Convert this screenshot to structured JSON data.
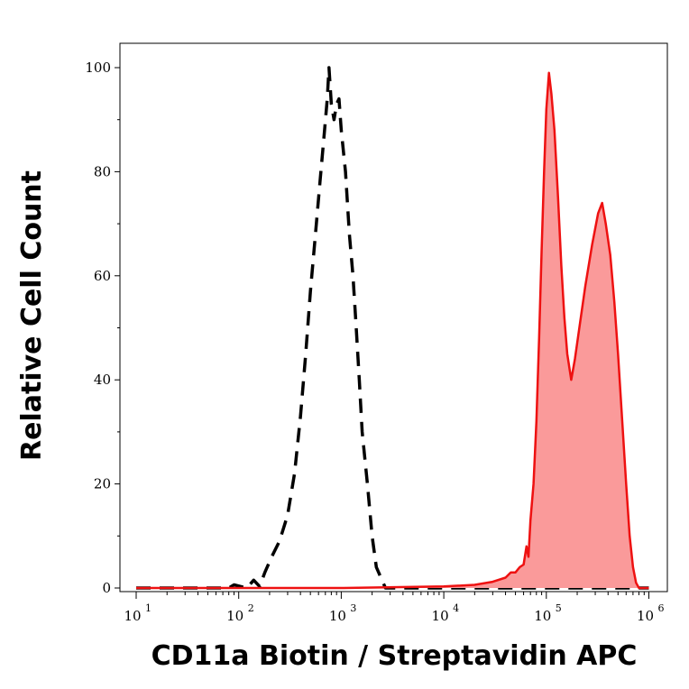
{
  "chart_data": {
    "type": "area",
    "title": "",
    "xlabel": "CD11a Biotin / Streptavidin APC",
    "ylabel": "Relative Cell Count",
    "x_scale": "log",
    "xlim": [
      10,
      1000000
    ],
    "ylim": [
      0,
      104
    ],
    "grid": false,
    "legend": "none",
    "x_ticks": [
      {
        "base": "10",
        "exp": "1",
        "value": 10
      },
      {
        "base": "10",
        "exp": "2",
        "value": 100
      },
      {
        "base": "10",
        "exp": "3",
        "value": 1000
      },
      {
        "base": "10",
        "exp": "4",
        "value": 10000
      },
      {
        "base": "10",
        "exp": "5",
        "value": 100000
      },
      {
        "base": "10",
        "exp": "6",
        "value": 1000000
      }
    ],
    "y_ticks": [
      {
        "label": "0",
        "value": 0
      },
      {
        "label": "20",
        "value": 20
      },
      {
        "label": "40",
        "value": 40
      },
      {
        "label": "60",
        "value": 60
      },
      {
        "label": "80",
        "value": 80
      },
      {
        "label": "100",
        "value": 100
      }
    ],
    "series": [
      {
        "style": "dashed",
        "color": "#000000",
        "fill": "none",
        "points": [
          [
            10,
            0
          ],
          [
            80,
            0
          ],
          [
            90,
            0.6
          ],
          [
            120,
            0
          ],
          [
            140,
            1.5
          ],
          [
            160,
            0.3
          ],
          [
            180,
            3
          ],
          [
            210,
            6
          ],
          [
            250,
            9
          ],
          [
            300,
            14
          ],
          [
            350,
            22
          ],
          [
            400,
            33
          ],
          [
            450,
            45
          ],
          [
            500,
            57
          ],
          [
            560,
            68
          ],
          [
            620,
            78
          ],
          [
            680,
            87
          ],
          [
            730,
            94
          ],
          [
            760,
            100
          ],
          [
            800,
            93
          ],
          [
            850,
            90
          ],
          [
            900,
            93
          ],
          [
            950,
            94
          ],
          [
            1000,
            88
          ],
          [
            1100,
            80
          ],
          [
            1200,
            68
          ],
          [
            1300,
            60
          ],
          [
            1400,
            50
          ],
          [
            1500,
            40
          ],
          [
            1600,
            30
          ],
          [
            1800,
            20
          ],
          [
            2000,
            10
          ],
          [
            2200,
            4
          ],
          [
            2500,
            1.5
          ],
          [
            2700,
            0
          ],
          [
            1000000,
            0
          ]
        ]
      },
      {
        "style": "solid",
        "color": "#ee1111",
        "fill": "#fa9a9a",
        "points": [
          [
            10,
            0
          ],
          [
            1000,
            0
          ],
          [
            10000,
            0.3
          ],
          [
            20000,
            0.6
          ],
          [
            30000,
            1.2
          ],
          [
            40000,
            2
          ],
          [
            45000,
            3
          ],
          [
            50000,
            3
          ],
          [
            55000,
            4
          ],
          [
            60000,
            4.5
          ],
          [
            64000,
            8
          ],
          [
            67000,
            6
          ],
          [
            70000,
            13
          ],
          [
            75000,
            20
          ],
          [
            80000,
            32
          ],
          [
            85000,
            48
          ],
          [
            90000,
            65
          ],
          [
            95000,
            80
          ],
          [
            100000,
            92
          ],
          [
            106000,
            99
          ],
          [
            112000,
            95
          ],
          [
            120000,
            88
          ],
          [
            130000,
            75
          ],
          [
            140000,
            62
          ],
          [
            150000,
            52
          ],
          [
            160000,
            45
          ],
          [
            175000,
            40
          ],
          [
            190000,
            44
          ],
          [
            210000,
            50
          ],
          [
            240000,
            58
          ],
          [
            280000,
            66
          ],
          [
            320000,
            72
          ],
          [
            350000,
            74
          ],
          [
            380000,
            70
          ],
          [
            420000,
            64
          ],
          [
            460000,
            55
          ],
          [
            500000,
            45
          ],
          [
            550000,
            32
          ],
          [
            600000,
            20
          ],
          [
            650000,
            10
          ],
          [
            700000,
            4
          ],
          [
            750000,
            1
          ],
          [
            800000,
            0
          ],
          [
            1000000,
            0
          ]
        ]
      }
    ]
  }
}
